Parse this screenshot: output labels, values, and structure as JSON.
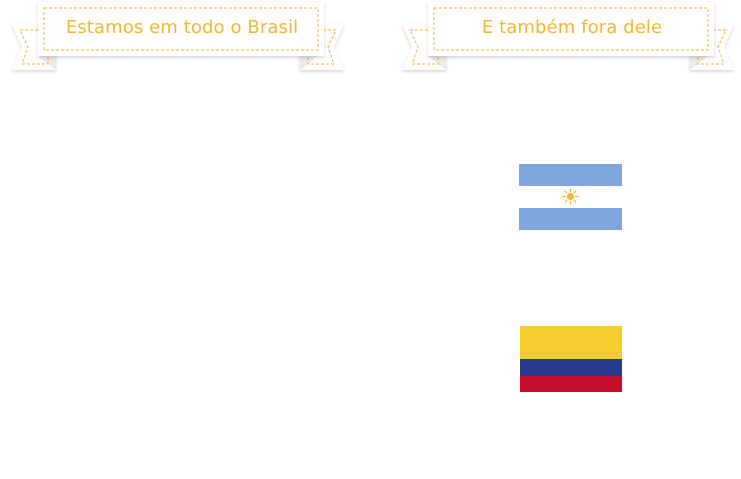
{
  "banners": {
    "brazil": {
      "title": "Estamos em todo o Brasil"
    },
    "abroad": {
      "title": "E também fora dele"
    }
  },
  "flags": [
    {
      "country": "Argentina",
      "icon": "argentina-flag-icon"
    },
    {
      "country": "Colombia",
      "icon": "colombia-flag-icon"
    }
  ],
  "colors": {
    "accent": "#f2b632",
    "ribbon_fill": "#ffffff",
    "ribbon_shadow": "#e6e6e6",
    "argentina_blue": "#7ea6db",
    "argentina_sun": "#f2b632",
    "colombia_yellow": "#f3cd2f",
    "colombia_blue": "#273a8f",
    "colombia_red": "#c8102e"
  }
}
